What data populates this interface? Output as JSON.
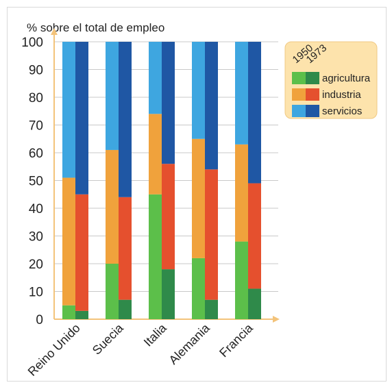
{
  "chart_data": {
    "type": "bar",
    "ylabel": "% sobre el total de empleo",
    "ylim": [
      0,
      100
    ],
    "yticks": [
      0,
      10,
      20,
      30,
      40,
      50,
      60,
      70,
      80,
      90,
      100
    ],
    "grid": true,
    "legend_position": "top-right",
    "legend_years": [
      "1950",
      "1973"
    ],
    "categories": [
      "Reino Unido",
      "Suecia",
      "Italia",
      "Alemania",
      "Francia"
    ],
    "series": [
      {
        "name": "agricultura",
        "year": "1950",
        "values": [
          5,
          20,
          45,
          22,
          28
        ]
      },
      {
        "name": "industria",
        "year": "1950",
        "values": [
          46,
          41,
          29,
          43,
          35
        ]
      },
      {
        "name": "servicios",
        "year": "1950",
        "values": [
          49,
          39,
          26,
          35,
          37
        ]
      },
      {
        "name": "agricultura",
        "year": "1973",
        "values": [
          3,
          7,
          18,
          7,
          11
        ]
      },
      {
        "name": "industria",
        "year": "1973",
        "values": [
          42,
          37,
          38,
          47,
          38
        ]
      },
      {
        "name": "servicios",
        "year": "1973",
        "values": [
          55,
          56,
          44,
          46,
          51
        ]
      }
    ],
    "legend": [
      "agricultura",
      "industria",
      "servicios"
    ],
    "colors": {
      "agricultura": {
        "1950": "#5cbf4a",
        "1973": "#2f8a4a"
      },
      "industria": {
        "1950": "#f0a23c",
        "1973": "#e5502e"
      },
      "servicios": {
        "1950": "#3ea6e0",
        "1973": "#1f57a4"
      }
    }
  }
}
